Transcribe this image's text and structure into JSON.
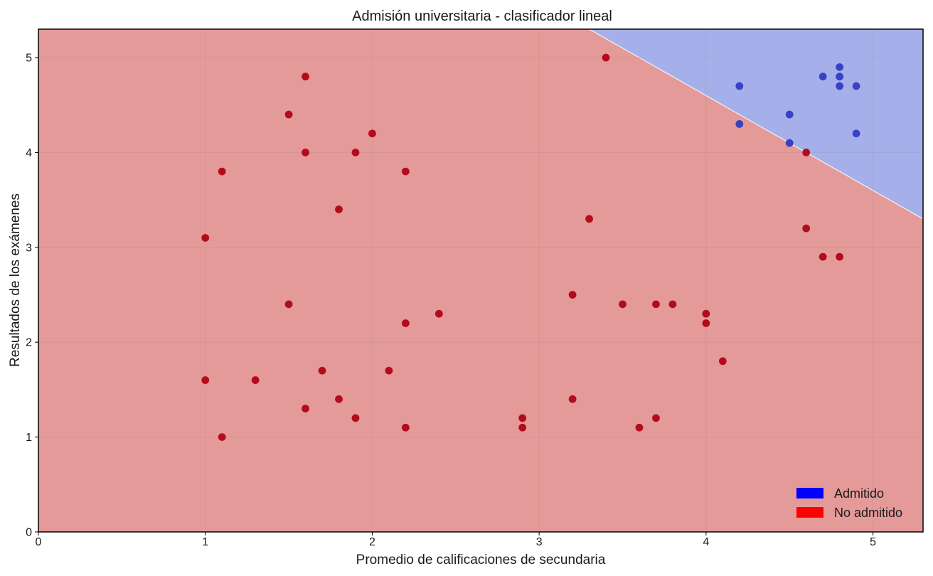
{
  "chart_data": {
    "type": "scatter",
    "title": "Admisión universitaria - clasificador lineal",
    "xlabel": "Promedio de calificaciones de secundaria",
    "ylabel": "Resultados de los exámenes",
    "xlim": [
      0,
      5.3
    ],
    "ylim": [
      0,
      5.3
    ],
    "x_ticks": [
      "0",
      "1",
      "2",
      "3",
      "4",
      "5"
    ],
    "y_ticks": [
      "0",
      "1",
      "2",
      "3",
      "4",
      "5"
    ],
    "grid": true,
    "legend_position": "bottom-right",
    "decision_boundary": {
      "points": [
        [
          3.3,
          5.3
        ],
        [
          5.3,
          3.3
        ]
      ],
      "above_class": "Admitido",
      "below_class": "No admitido"
    },
    "region_colors": {
      "Admitido": "#a5b0ea",
      "No admitido": "#e49a98"
    },
    "series": [
      {
        "name": "Admitido",
        "color": "#3742c4",
        "legend_color": "#0000ff",
        "points": [
          [
            4.2,
            4.7
          ],
          [
            4.2,
            4.3
          ],
          [
            4.5,
            4.4
          ],
          [
            4.5,
            4.1
          ],
          [
            4.7,
            4.8
          ],
          [
            4.8,
            4.9
          ],
          [
            4.8,
            4.8
          ],
          [
            4.8,
            4.7
          ],
          [
            4.9,
            4.7
          ],
          [
            4.9,
            4.2
          ]
        ]
      },
      {
        "name": "No admitido",
        "color": "#b20c1c",
        "legend_color": "#ff0000",
        "points": [
          [
            1.0,
            3.1
          ],
          [
            1.0,
            1.6
          ],
          [
            1.1,
            3.8
          ],
          [
            1.1,
            1.0
          ],
          [
            1.3,
            1.6
          ],
          [
            1.5,
            4.4
          ],
          [
            1.5,
            2.4
          ],
          [
            1.6,
            4.8
          ],
          [
            1.6,
            4.0
          ],
          [
            1.6,
            1.3
          ],
          [
            1.7,
            1.7
          ],
          [
            1.8,
            3.4
          ],
          [
            1.8,
            1.4
          ],
          [
            1.9,
            4.0
          ],
          [
            1.9,
            1.2
          ],
          [
            2.0,
            4.2
          ],
          [
            2.1,
            1.7
          ],
          [
            2.2,
            3.8
          ],
          [
            2.2,
            2.2
          ],
          [
            2.2,
            1.1
          ],
          [
            2.4,
            2.3
          ],
          [
            2.9,
            1.2
          ],
          [
            2.9,
            1.1
          ],
          [
            3.2,
            2.5
          ],
          [
            3.2,
            1.4
          ],
          [
            3.3,
            3.3
          ],
          [
            3.4,
            5.0
          ],
          [
            3.5,
            2.4
          ],
          [
            3.6,
            1.1
          ],
          [
            3.7,
            2.4
          ],
          [
            3.7,
            1.2
          ],
          [
            3.8,
            2.4
          ],
          [
            4.0,
            2.3
          ],
          [
            4.0,
            2.2
          ],
          [
            4.1,
            1.8
          ],
          [
            4.6,
            4.0
          ],
          [
            4.6,
            3.2
          ],
          [
            4.7,
            2.9
          ],
          [
            4.8,
            2.9
          ]
        ]
      }
    ]
  }
}
